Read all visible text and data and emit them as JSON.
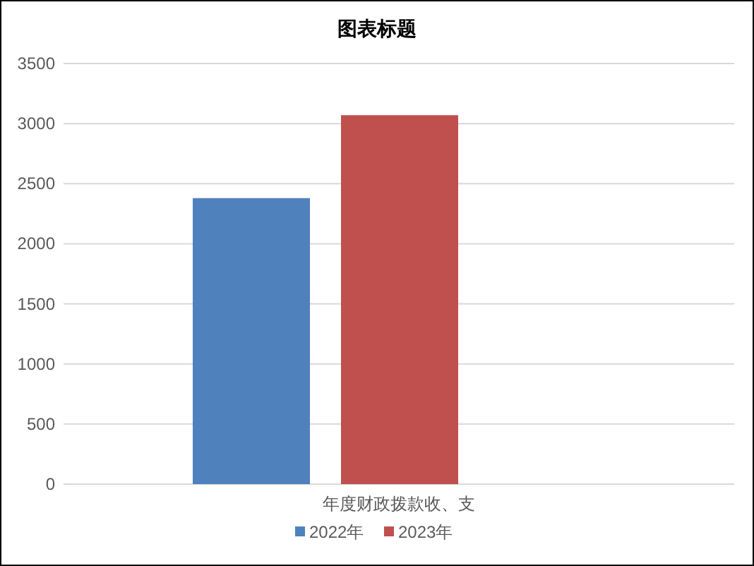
{
  "chart_data": {
    "type": "bar",
    "title": "图表标题",
    "categories": [
      "年度财政拨款收、支"
    ],
    "series": [
      {
        "name": "2022年",
        "color": "#4f81bd",
        "values": [
          2380
        ]
      },
      {
        "name": "2023年",
        "color": "#c0504d",
        "values": [
          3070
        ]
      }
    ],
    "ylim": [
      0,
      3500
    ],
    "yticks": [
      0,
      500,
      1000,
      1500,
      2000,
      2500,
      3000,
      3500
    ],
    "grid": "y",
    "legend": "bottom"
  }
}
